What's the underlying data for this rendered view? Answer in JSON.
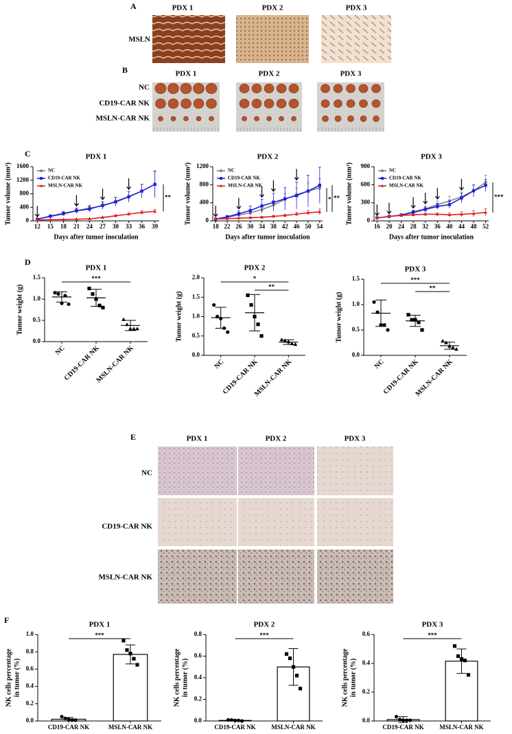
{
  "panel_labels": [
    "A",
    "B",
    "C",
    "D",
    "E",
    "F"
  ],
  "ihc_a": {
    "columns": [
      "PDX 1",
      "PDX 2",
      "PDX 3"
    ],
    "rows": [
      "MSLN"
    ]
  },
  "tumors_b": {
    "columns": [
      "PDX 1",
      "PDX 2",
      "PDX 3"
    ],
    "rows": [
      "NC",
      "CD19-CAR NK",
      "MSLN-CAR NK"
    ]
  },
  "ihc_e": {
    "columns": [
      "PDX 1",
      "PDX 2",
      "PDX 3"
    ],
    "rows": [
      "NC",
      "CD19-CAR NK",
      "MSLN-CAR NK"
    ]
  },
  "chart_data": [
    {
      "type": "line",
      "title": "PDX 1",
      "xlabel": "Days after tumor inoculation",
      "ylabel": "Tumor volume (mm³)",
      "x": [
        12,
        15,
        18,
        21,
        24,
        27,
        30,
        33,
        36,
        39
      ],
      "xlim": [
        11,
        40
      ],
      "xticks": [
        12,
        15,
        18,
        21,
        24,
        27,
        30,
        33,
        36,
        39
      ],
      "ylim": [
        0,
        1600
      ],
      "yticks": [
        0,
        400,
        800,
        1200,
        1600
      ],
      "series": [
        {
          "name": "NC",
          "color": "#808080",
          "values": [
            50,
            130,
            200,
            300,
            380,
            440,
            580,
            720,
            880,
            1080
          ],
          "errors": [
            10,
            30,
            50,
            60,
            80,
            100,
            120,
            150,
            200,
            400
          ]
        },
        {
          "name": "CD19-CAR NK",
          "color": "#1f1fe0",
          "values": [
            50,
            140,
            220,
            300,
            350,
            460,
            560,
            710,
            880,
            1080
          ],
          "errors": [
            10,
            40,
            60,
            80,
            90,
            110,
            130,
            160,
            200,
            380
          ]
        },
        {
          "name": "MSLN-CAR NK",
          "color": "#e02020",
          "values": [
            30,
            35,
            40,
            50,
            60,
            100,
            150,
            200,
            250,
            280
          ],
          "errors": [
            5,
            5,
            10,
            10,
            15,
            20,
            30,
            40,
            50,
            60
          ]
        }
      ],
      "treatment_days": [
        12,
        21,
        27,
        33
      ],
      "annotations": [
        "**"
      ]
    },
    {
      "type": "line",
      "title": "PDX 2",
      "xlabel": "Days after tumor inoculation",
      "ylabel": "Tumor volume (mm³)",
      "x": [
        18,
        22,
        26,
        30,
        34,
        38,
        42,
        46,
        50,
        54
      ],
      "xlim": [
        17,
        55
      ],
      "xticks": [
        18,
        22,
        26,
        30,
        34,
        38,
        42,
        46,
        50,
        54
      ],
      "ylim": [
        0,
        1200
      ],
      "yticks": [
        0,
        400,
        800,
        1200
      ],
      "series": [
        {
          "name": "NC",
          "color": "#808080",
          "values": [
            40,
            80,
            130,
            180,
            250,
            350,
            480,
            580,
            660,
            730
          ],
          "errors": [
            10,
            20,
            40,
            60,
            80,
            100,
            120,
            140,
            180,
            200
          ]
        },
        {
          "name": "CD19-CAR NK",
          "color": "#1f1fe0",
          "values": [
            40,
            90,
            160,
            230,
            330,
            410,
            490,
            560,
            660,
            790
          ],
          "errors": [
            10,
            30,
            60,
            100,
            150,
            200,
            250,
            300,
            350,
            400
          ]
        },
        {
          "name": "MSLN-CAR NK",
          "color": "#e02020",
          "values": [
            40,
            50,
            60,
            70,
            80,
            100,
            120,
            150,
            180,
            200
          ],
          "errors": [
            5,
            10,
            10,
            15,
            20,
            20,
            30,
            40,
            50,
            60
          ]
        }
      ],
      "treatment_days": [
        18,
        26,
        34,
        38,
        46
      ],
      "annotations": [
        "*",
        "**"
      ]
    },
    {
      "type": "line",
      "title": "PDX 3",
      "xlabel": "Days after tumor inoculation",
      "ylabel": "Tumor volume (mm³)",
      "x": [
        16,
        20,
        24,
        28,
        32,
        36,
        40,
        44,
        48,
        52
      ],
      "xlim": [
        15,
        53
      ],
      "xticks": [
        16,
        20,
        24,
        28,
        32,
        36,
        40,
        44,
        48,
        52
      ],
      "ylim": [
        0,
        900
      ],
      "yticks": [
        0,
        300,
        600,
        900
      ],
      "series": [
        {
          "name": "NC",
          "color": "#808080",
          "values": [
            50,
            70,
            100,
            150,
            200,
            270,
            330,
            400,
            500,
            640
          ],
          "errors": [
            5,
            10,
            20,
            30,
            50,
            60,
            80,
            80,
            100,
            120
          ]
        },
        {
          "name": "CD19-CAR NK",
          "color": "#1f1fe0",
          "values": [
            50,
            75,
            95,
            140,
            190,
            240,
            270,
            380,
            500,
            590
          ],
          "errors": [
            5,
            10,
            15,
            30,
            40,
            50,
            60,
            80,
            100,
            100
          ]
        },
        {
          "name": "MSLN-CAR NK",
          "color": "#e02020",
          "values": [
            50,
            75,
            90,
            100,
            110,
            110,
            100,
            110,
            120,
            140
          ],
          "errors": [
            5,
            10,
            10,
            15,
            20,
            25,
            30,
            40,
            50,
            60
          ]
        }
      ],
      "treatment_days": [
        16,
        20,
        28,
        32,
        36,
        44
      ],
      "annotations": [
        "***"
      ]
    },
    {
      "type": "dot",
      "title": "PDX 1",
      "ylabel": "Tumor weight (g)",
      "categories": [
        "NC",
        "CD19-CAR NK",
        "MSLN-CAR NK"
      ],
      "ylim": [
        0,
        1.5
      ],
      "yticks": [
        {
          "value": 0,
          "label": "0.0"
        },
        0.5,
        {
          "value": 1,
          "label": "1.0"
        },
        1.5
      ],
      "points": [
        [
          1.15,
          1.12,
          0.9,
          1.08,
          0.88
        ],
        [
          1.25,
          1.12,
          1.0,
          0.85,
          0.8
        ],
        [
          0.52,
          0.4,
          0.3,
          0.3,
          0.3
        ]
      ],
      "means": [
        1.05,
        1.03,
        0.38
      ],
      "sds": [
        0.12,
        0.2,
        0.12
      ],
      "annotations": [
        "***"
      ]
    },
    {
      "type": "dot",
      "title": "PDX 2",
      "ylabel": "Tumor weight (g)",
      "categories": [
        "NC",
        "CD19-CAR NK",
        "MSLN-CAR NK"
      ],
      "ylim": [
        0,
        2
      ],
      "yticks": [
        {
          "value": 0,
          "label": "0.0"
        },
        0.5,
        {
          "value": 1,
          "label": "1.0"
        },
        1.5,
        {
          "value": 2,
          "label": "2.0"
        }
      ],
      "points": [
        [
          1.3,
          1.0,
          0.95,
          0.7,
          0.6
        ],
        [
          1.55,
          1.3,
          1.0,
          0.8,
          0.5
        ],
        [
          0.4,
          0.38,
          0.35,
          0.3,
          0.28
        ]
      ],
      "means": [
        0.97,
        1.1,
        0.34
      ],
      "sds": [
        0.27,
        0.47,
        0.06
      ],
      "annotations": [
        "*",
        "**"
      ]
    },
    {
      "type": "dot",
      "title": "PDX 3",
      "ylabel": "Tumor weight (g)",
      "categories": [
        "NC",
        "CD19-CAR NK",
        "MSLN-CAR NK"
      ],
      "ylim": [
        0,
        1.5
      ],
      "yticks": [
        {
          "value": 0,
          "label": "0.0"
        },
        0.5,
        {
          "value": 1,
          "label": "1.0"
        },
        1.5
      ],
      "points": [
        [
          1.05,
          0.85,
          0.6,
          0.6,
          0.5
        ],
        [
          0.8,
          0.7,
          0.7,
          0.65,
          0.5
        ],
        [
          0.28,
          0.25,
          0.18,
          0.15,
          0.12
        ]
      ],
      "means": [
        0.83,
        0.68,
        0.19
      ],
      "sds": [
        0.26,
        0.11,
        0.07
      ],
      "annotations": [
        "***",
        "**"
      ]
    },
    {
      "type": "bar",
      "title": "PDX 1",
      "ylabel": [
        "NK cells percentage",
        "in tumor (%)"
      ],
      "categories": [
        "CD19-CAR NK",
        "MSLN-CAR NK"
      ],
      "ylim": [
        0,
        1
      ],
      "yticks": [
        {
          "value": 0,
          "label": "0.0"
        },
        0.2,
        0.4,
        0.6,
        0.8,
        {
          "value": 1,
          "label": "1.0"
        }
      ],
      "values": [
        0.02,
        0.77
      ],
      "errors": [
        0.02,
        0.11
      ],
      "points": [
        [
          0.05,
          0.03,
          0.02,
          0.01,
          0.01
        ],
        [
          0.93,
          0.82,
          0.78,
          0.72,
          0.65
        ]
      ],
      "annotations": [
        "***"
      ]
    },
    {
      "type": "bar",
      "title": "PDX 2",
      "ylabel": [
        "NK cells percentage",
        "in tumor (%)"
      ],
      "categories": [
        "CD19-CAR NK",
        "MSLN-CAR NK"
      ],
      "ylim": [
        0,
        0.8
      ],
      "yticks": [
        {
          "value": 0,
          "label": "0.0"
        },
        0.2,
        0.4,
        0.6,
        0.8
      ],
      "values": [
        0.005,
        0.5
      ],
      "errors": [
        0.005,
        0.17
      ],
      "points": [
        [
          0.01,
          0.01,
          0.005,
          0.005,
          0
        ],
        [
          0.62,
          0.58,
          0.5,
          0.42,
          0.3
        ]
      ],
      "annotations": [
        "***"
      ]
    },
    {
      "type": "bar",
      "title": "PDX 3",
      "ylabel": [
        "NK cells percentage",
        "in tumor (%)"
      ],
      "categories": [
        "CD19-CAR NK",
        "MSLN-CAR NK"
      ],
      "ylim": [
        0,
        0.6
      ],
      "yticks": [
        {
          "value": 0,
          "label": "0.0"
        },
        0.2,
        0.4,
        0.6
      ],
      "values": [
        0.01,
        0.415
      ],
      "errors": [
        0.02,
        0.085
      ],
      "points": [
        [
          0.03,
          0.01,
          0.005,
          0.005,
          0.005
        ],
        [
          0.52,
          0.45,
          0.43,
          0.42,
          0.32
        ]
      ],
      "annotations": [
        "***"
      ]
    }
  ]
}
